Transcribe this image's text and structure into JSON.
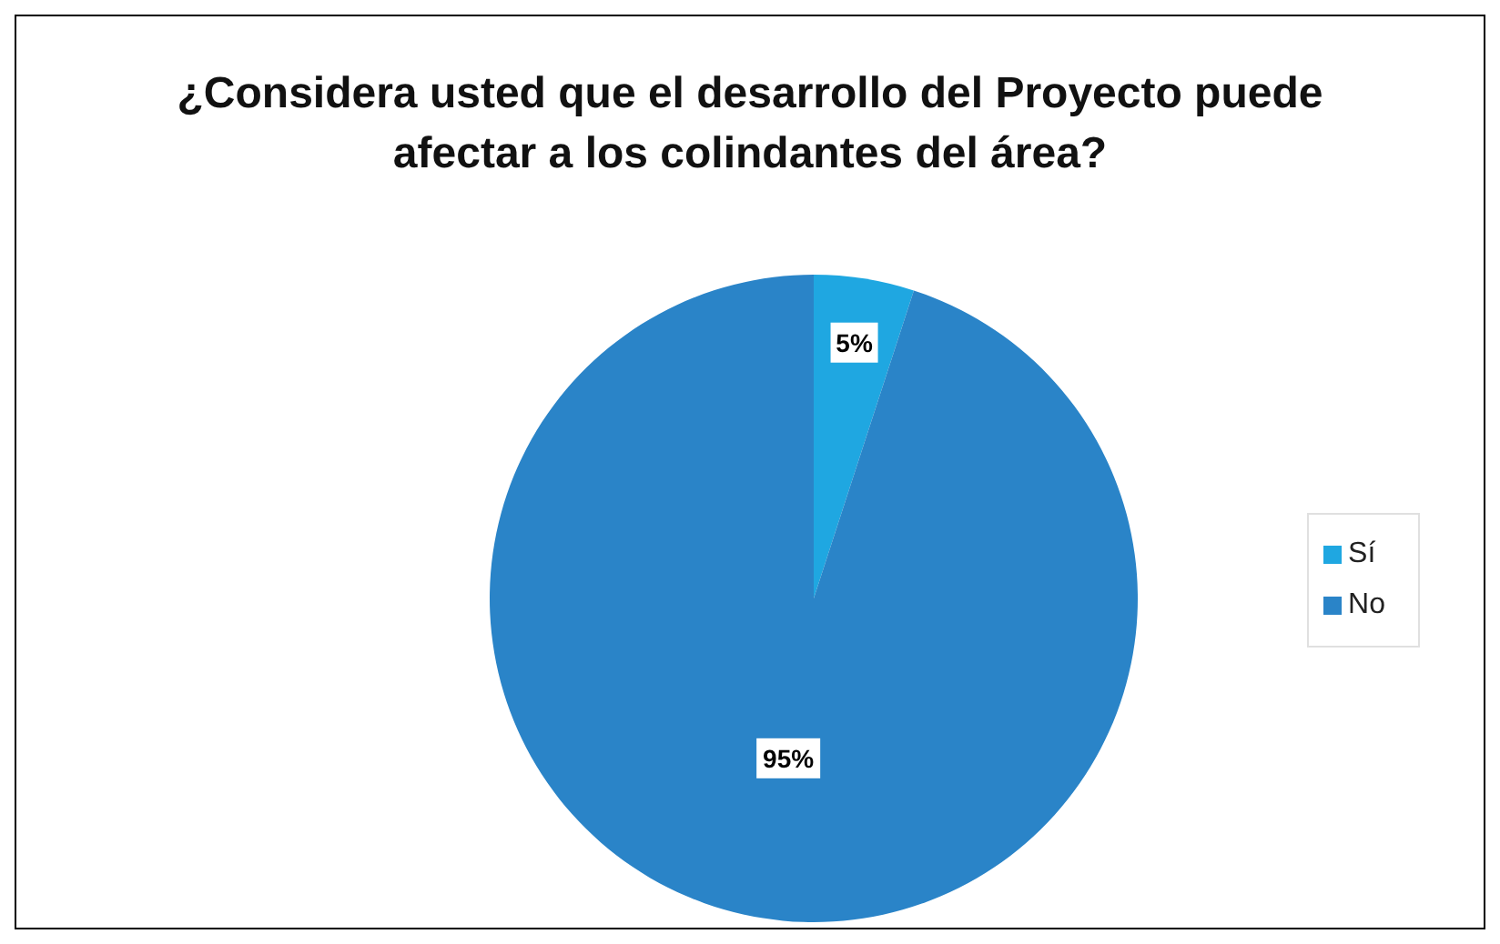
{
  "chart_data": {
    "type": "pie",
    "title": "¿Considera usted que el desarrollo del Proyecto puede afectar a los colindantes del área?",
    "categories": [
      "Sí",
      "No"
    ],
    "values": [
      5,
      95
    ],
    "colors": [
      "#1fa7e1",
      "#2a84c8"
    ],
    "value_labels": [
      "5%",
      "95%"
    ],
    "legend": "right"
  }
}
